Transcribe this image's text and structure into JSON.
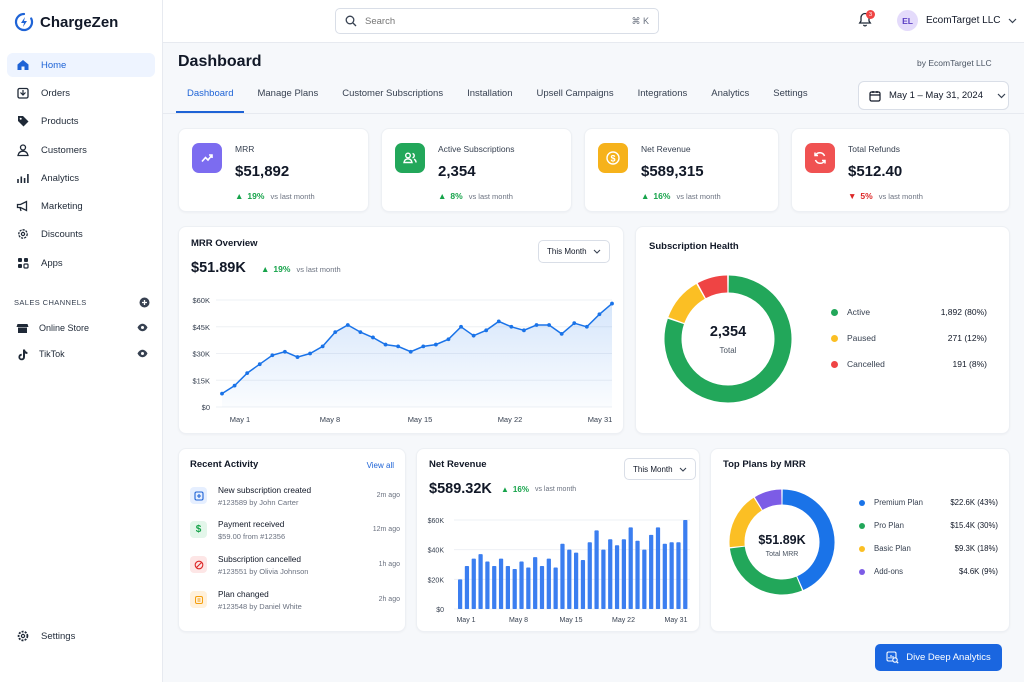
{
  "app": {
    "name": "ChargeZen",
    "logo_icon": "chargezen-logo-icon"
  },
  "colors": {
    "accent": "#1e63d6",
    "green": "#22a75a",
    "orange": "#fbbf24",
    "red": "#ef4444",
    "purple": "#7c5ce6"
  },
  "sidebar": {
    "items": [
      {
        "label": "Home",
        "icon": "home-icon"
      },
      {
        "label": "Orders",
        "icon": "orders-icon"
      },
      {
        "label": "Products",
        "icon": "tag-icon"
      },
      {
        "label": "Customers",
        "icon": "user-icon"
      },
      {
        "label": "Analytics",
        "icon": "bar-chart-icon"
      },
      {
        "label": "Marketing",
        "icon": "megaphone-icon"
      },
      {
        "label": "Discounts",
        "icon": "gear-discount-icon"
      },
      {
        "label": "Apps",
        "icon": "apps-icon"
      }
    ],
    "sales_channels_heading": "SALES CHANNELS",
    "channels": [
      {
        "label": "Online Store"
      },
      {
        "label": "TikTok"
      }
    ],
    "settings_label": "Settings"
  },
  "topbar": {
    "search_placeholder": "Search",
    "search_shortcut": "⌘ K",
    "notification_count": "3",
    "account_initials": "EL",
    "account_name": "EcomTarget LLC"
  },
  "header": {
    "title": "Dashboard",
    "byline": "by EcomTarget LLC",
    "date_range": "May 1 – May 31, 2024",
    "tabs": [
      "Dashboard",
      "Manage Plans",
      "Customer Subscriptions",
      "Installation",
      "Upsell Campaigns",
      "Integrations",
      "Analytics",
      "Settings"
    ]
  },
  "kpis": [
    {
      "label": "MRR",
      "value": "$51,892",
      "delta": "19%",
      "direction": "up",
      "vs": "vs last month"
    },
    {
      "label": "Active Subscriptions",
      "value": "2,354",
      "delta": "8%",
      "direction": "up",
      "vs": "vs last month"
    },
    {
      "label": "Net Revenue",
      "value": "$589,315",
      "delta": "16%",
      "direction": "up",
      "vs": "vs last month"
    },
    {
      "label": "Total Refunds",
      "value": "$512.40",
      "delta": "5%",
      "direction": "down",
      "vs": "vs last month"
    }
  ],
  "mrr_overview": {
    "title": "MRR Overview",
    "value": "$51.89K",
    "delta": "19%",
    "vs": "vs last month",
    "filter": "This Month"
  },
  "subscription_health": {
    "title": "Subscription Health",
    "center_value": "2,354",
    "center_label": "Total",
    "legend": [
      {
        "label": "Active",
        "value": "1,892 (80%)",
        "color": "#22a75a"
      },
      {
        "label": "Paused",
        "value": "271 (12%)",
        "color": "#fbbf24"
      },
      {
        "label": "Cancelled",
        "value": "191 (8%)",
        "color": "#ef4444"
      }
    ]
  },
  "recent_activity": {
    "title": "Recent Activity",
    "view_all": "View all",
    "items": [
      {
        "title": "New subscription created",
        "sub": "#123589 by John Carter",
        "time": "2m ago",
        "icon": "plus-square-icon"
      },
      {
        "title": "Payment received",
        "sub": "$59.00 from #12356",
        "time": "12m ago",
        "icon": "dollar-icon"
      },
      {
        "title": "Subscription cancelled",
        "sub": "#123551 by Olivia Johnson",
        "time": "1h ago",
        "icon": "cancel-icon"
      },
      {
        "title": "Plan changed",
        "sub": "#123548 by Daniel White",
        "time": "2h ago",
        "icon": "swap-icon"
      }
    ]
  },
  "net_revenue": {
    "title": "Net Revenue",
    "value": "$589.32K",
    "delta": "16%",
    "vs": "vs last month",
    "filter": "This Month"
  },
  "top_plans": {
    "title": "Top Plans by MRR",
    "center_value": "$51.89K",
    "center_label": "Total MRR",
    "legend": [
      {
        "label": "Premium Plan",
        "value": "$22.6K (43%)",
        "color": "#1a73e8"
      },
      {
        "label": "Pro Plan",
        "value": "$15.4K (30%)",
        "color": "#22a75a"
      },
      {
        "label": "Basic Plan",
        "value": "$9.3K (18%)",
        "color": "#fbbf24"
      },
      {
        "label": "Add-ons",
        "value": "$4.6K (9%)",
        "color": "#7c5ce6"
      }
    ]
  },
  "cta_label": "Dive Deep Analytics",
  "chart_data": [
    {
      "type": "area",
      "id": "mrr",
      "x_ticks": [
        "May 1",
        "May 8",
        "May 15",
        "May 22",
        "May 31"
      ],
      "y_ticks": [
        "$0",
        "$15K",
        "$30K",
        "$45K",
        "$60K"
      ],
      "ylim": [
        0,
        60000
      ],
      "values": [
        7500,
        12000,
        19000,
        24000,
        29000,
        31000,
        28000,
        30000,
        34000,
        42000,
        46000,
        42000,
        39000,
        35000,
        34000,
        31000,
        34000,
        35000,
        38000,
        45000,
        40000,
        43000,
        48000,
        45000,
        43000,
        46000,
        46000,
        41000,
        47000,
        45000,
        52000,
        58000
      ],
      "color": "#1a73e8"
    },
    {
      "type": "bar",
      "id": "net_revenue",
      "x_ticks": [
        "May 1",
        "May 8",
        "May 15",
        "May 22",
        "May 31"
      ],
      "y_ticks": [
        "$0",
        "$20K",
        "$40K",
        "$60K"
      ],
      "ylim": [
        0,
        60000
      ],
      "values": [
        20000,
        29000,
        34000,
        37000,
        32000,
        29000,
        34000,
        29000,
        27000,
        32000,
        28000,
        35000,
        29000,
        34000,
        28000,
        44000,
        40000,
        38000,
        33000,
        45000,
        53000,
        40000,
        47000,
        43000,
        47000,
        55000,
        46000,
        40000,
        50000,
        55000,
        44000,
        45000,
        45000,
        60000
      ],
      "color": "#3b7ef0"
    },
    {
      "type": "pie",
      "id": "subscription_health",
      "categories": [
        "Active",
        "Paused",
        "Cancelled"
      ],
      "values": [
        1892,
        271,
        191
      ]
    },
    {
      "type": "pie",
      "id": "top_plans",
      "categories": [
        "Premium Plan",
        "Pro Plan",
        "Basic Plan",
        "Add-ons"
      ],
      "values": [
        22.6,
        15.4,
        9.3,
        4.6
      ]
    }
  ]
}
